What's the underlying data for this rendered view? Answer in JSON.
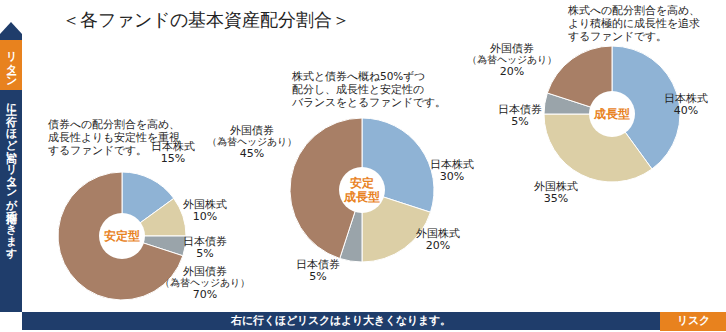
{
  "title": "＜各ファンドの基本資産配分割合＞",
  "y_axis_label": "リターン",
  "y_axis_note": "上に行くほど高いリターンが期待できます。",
  "x_axis_label": "リスク",
  "x_axis_note": "右に行くほどリスクはより大きくなります。",
  "chart_data": [
    {
      "type": "pie",
      "title": "安定型",
      "subtitle": [
        "債券への配分割合を高め、",
        "成長性よりも安定性を重視",
        "するファンドです。"
      ],
      "categories": [
        "日本株式",
        "外国株式",
        "日本債券",
        "外国債券（為替ヘッジあり）"
      ],
      "values": [
        15,
        10,
        5,
        70
      ],
      "value_labels": [
        "15%",
        "10%",
        "5%",
        "70%"
      ],
      "colors": [
        "#8fb3d5",
        "#dccfa6",
        "#9aa4aa",
        "#a87f66"
      ],
      "data_labels": true
    },
    {
      "type": "pie",
      "title": "安定成長型",
      "subtitle": [
        "株式と債券へ概ね50%ずつ",
        "配分し、成長性と安定性の",
        "バランスをとるファンドです。"
      ],
      "categories": [
        "日本株式",
        "外国株式",
        "日本債券",
        "外国債券（為替ヘッジあり）"
      ],
      "values": [
        30,
        20,
        5,
        45
      ],
      "value_labels": [
        "30%",
        "20%",
        "5%",
        "45%"
      ],
      "colors": [
        "#8fb3d5",
        "#dccfa6",
        "#9aa4aa",
        "#a87f66"
      ],
      "data_labels": true
    },
    {
      "type": "pie",
      "title": "成長型",
      "subtitle": [
        "株式への配分割合を高め、",
        "より積極的に成長性を追求",
        "するファンドです。"
      ],
      "categories": [
        "日本株式",
        "外国株式",
        "日本債券",
        "外国債券（為替ヘッジあり）"
      ],
      "values": [
        40,
        35,
        5,
        20
      ],
      "value_labels": [
        "40%",
        "35%",
        "5%",
        "20%"
      ],
      "colors": [
        "#8fb3d5",
        "#dccfa6",
        "#9aa4aa",
        "#a87f66"
      ],
      "data_labels": true
    }
  ]
}
